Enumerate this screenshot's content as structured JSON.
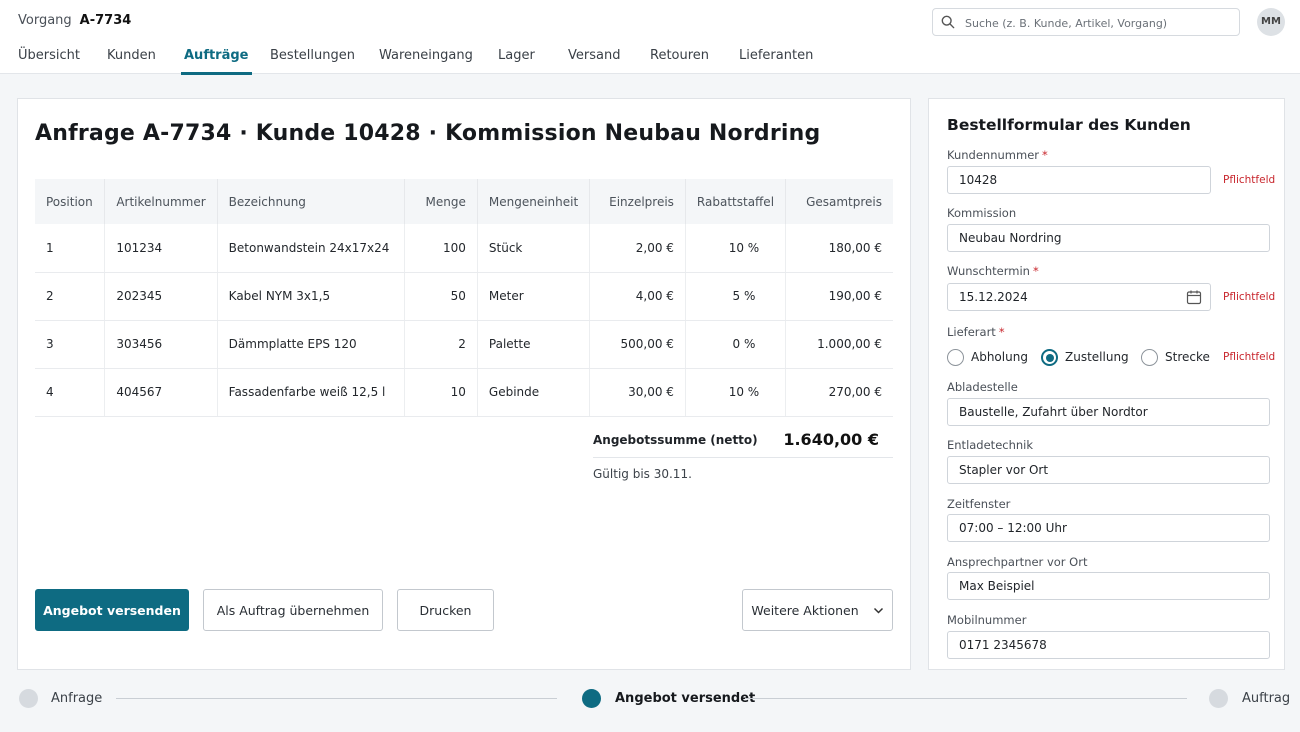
{
  "header": {
    "breadcrumb_label": "Vorgang",
    "breadcrumb_id": "A-7734",
    "search_placeholder": "Suche (z. B. Kunde, Artikel, Vorgang)",
    "avatar_initials": "MM"
  },
  "nav": {
    "tabs": [
      {
        "label": "Übersicht",
        "active": false
      },
      {
        "label": "Kunden",
        "active": false
      },
      {
        "label": "Aufträge",
        "active": true
      },
      {
        "label": "Bestellungen",
        "active": false
      },
      {
        "label": "Wareneingang",
        "active": false
      },
      {
        "label": "Lager",
        "active": false
      },
      {
        "label": "Versand",
        "active": false
      },
      {
        "label": "Retouren",
        "active": false
      },
      {
        "label": "Lieferanten",
        "active": false
      }
    ]
  },
  "main": {
    "title": "Anfrage A-7734 · Kunde 10428 · Kommission Neubau Nordring",
    "columns": [
      "Position",
      "Artikelnummer",
      "Bezeichnung",
      "Menge",
      "Mengeneinheit",
      "Einzelpreis",
      "Rabattstaffel",
      "Gesamtpreis"
    ],
    "rows": [
      [
        "1",
        "101234",
        "Betonwandstein 24x17x24",
        "100",
        "Stück",
        "2,00 €",
        "10 %",
        "180,00 €"
      ],
      [
        "2",
        "202345",
        "Kabel NYM 3x1,5",
        "50",
        "Meter",
        "4,00 €",
        "5 %",
        "190,00 €"
      ],
      [
        "3",
        "303456",
        "Dämmplatte EPS 120",
        "2",
        "Palette",
        "500,00 €",
        "0 %",
        "1.000,00 €"
      ],
      [
        "4",
        "404567",
        "Fassadenfarbe weiß 12,5 l",
        "10",
        "Gebinde",
        "30,00 €",
        "10 %",
        "270,00 €"
      ]
    ],
    "sum_label": "Angebotssumme (netto)",
    "sum_value": "1.640,00 €",
    "valid_until": "Gültig bis 30.11.",
    "buttons": {
      "send": "Angebot versenden",
      "convert": "Als Auftrag übernehmen",
      "print": "Drucken",
      "more": "Weitere Aktionen"
    }
  },
  "form": {
    "title": "Bestellformular des Kunden",
    "required_marker": "*",
    "required_hint": "Pflichtfeld",
    "kundennummer": {
      "label": "Kundennummer",
      "value": "10428"
    },
    "kommission": {
      "label": "Kommission",
      "value": "Neubau Nordring"
    },
    "wunschtermin": {
      "label": "Wunschtermin",
      "value": "15.12.2024"
    },
    "lieferart": {
      "label": "Lieferart",
      "options": [
        "Abholung",
        "Zustellung",
        "Strecke"
      ],
      "selected": "Zustellung"
    },
    "abladestelle": {
      "label": "Abladestelle",
      "value": "Baustelle, Zufahrt über Nordtor"
    },
    "entladetechnik": {
      "label": "Entladetechnik",
      "value": "Stapler vor Ort"
    },
    "zeitfenster": {
      "label": "Zeitfenster",
      "value": "07:00 – 12:00 Uhr"
    },
    "ansprechpartner": {
      "label": "Ansprechpartner vor Ort",
      "value": "Max Beispiel"
    },
    "mobilnummer": {
      "label": "Mobilnummer",
      "value": "0171 2345678"
    }
  },
  "progress": {
    "steps": [
      {
        "label": "Anfrage",
        "active": false
      },
      {
        "label": "Angebot versendet",
        "active": true
      },
      {
        "label": "Auftrag",
        "active": false
      }
    ]
  },
  "colors": {
    "accent": "#0e6b82",
    "required": "#c8262d",
    "background": "#f4f6f8"
  }
}
